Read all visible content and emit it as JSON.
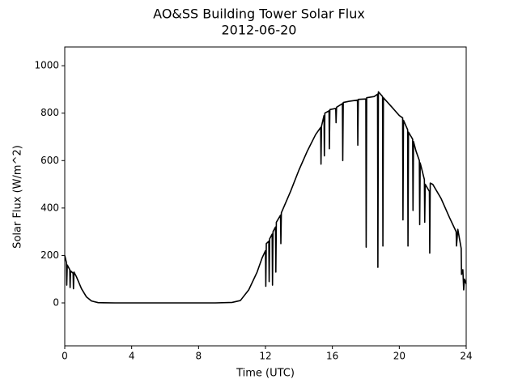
{
  "chart_data": {
    "type": "line",
    "title": "AO&SS Building Tower Solar Flux",
    "subtitle": "2012-06-20",
    "x_label": "Time (UTC)",
    "y_label": "Solar Flux (W/m^2)",
    "xlim": [
      0,
      24
    ],
    "xticks": [
      0,
      4,
      8,
      12,
      16,
      20,
      24
    ],
    "ylim": [
      -181,
      1079
    ],
    "yticks": [
      0,
      200,
      400,
      600,
      800,
      1000
    ],
    "grid": false,
    "series": [
      {
        "color": "#000000",
        "x": [
          0,
          0.1,
          0.12,
          0.15,
          0.3,
          0.32,
          0.35,
          0.5,
          0.52,
          0.55,
          0.7,
          1.0,
          1.3,
          1.6,
          2.0,
          3,
          6,
          9,
          10,
          10.5,
          11,
          11.5,
          11.8,
          12,
          12.02,
          12.05,
          12.2,
          12.22,
          12.25,
          12.4,
          12.42,
          12.45,
          12.6,
          12.62,
          12.65,
          12.9,
          12.92,
          12.95,
          13.5,
          14,
          14.5,
          15,
          15.3,
          15.32,
          15.35,
          15.5,
          15.52,
          15.55,
          15.8,
          15.82,
          15.85,
          16.2,
          16.22,
          16.25,
          16.6,
          16.62,
          16.65,
          17,
          17.5,
          17.52,
          17.55,
          18,
          18.02,
          18.05,
          18.5,
          18.7,
          18.72,
          18.75,
          19,
          19.02,
          19.05,
          19.5,
          20,
          20.2,
          20.22,
          20.25,
          20.5,
          20.52,
          20.55,
          20.8,
          20.82,
          20.85,
          21,
          21.2,
          21.22,
          21.25,
          21.5,
          21.52,
          21.55,
          21.8,
          21.82,
          21.85,
          22,
          22.5,
          23,
          23.4,
          23.42,
          23.5,
          23.7,
          23.72,
          23.8,
          23.85,
          23.9,
          24
        ],
        "values": [
          200,
          170,
          75,
          160,
          140,
          65,
          135,
          125,
          60,
          130,
          110,
          60,
          25,
          8,
          1,
          0,
          0,
          0,
          2,
          10,
          55,
          130,
          190,
          220,
          70,
          250,
          260,
          90,
          270,
          290,
          75,
          300,
          320,
          130,
          340,
          370,
          250,
          380,
          470,
          560,
          640,
          710,
          740,
          585,
          745,
          790,
          620,
          800,
          810,
          650,
          815,
          820,
          760,
          825,
          840,
          600,
          845,
          850,
          855,
          665,
          858,
          860,
          235,
          865,
          870,
          880,
          150,
          890,
          870,
          240,
          865,
          830,
          790,
          780,
          350,
          770,
          730,
          240,
          720,
          690,
          390,
          680,
          640,
          600,
          330,
          590,
          520,
          340,
          500,
          470,
          210,
          505,
          500,
          440,
          360,
          300,
          240,
          310,
          230,
          120,
          140,
          55,
          100,
          80
        ]
      }
    ]
  }
}
